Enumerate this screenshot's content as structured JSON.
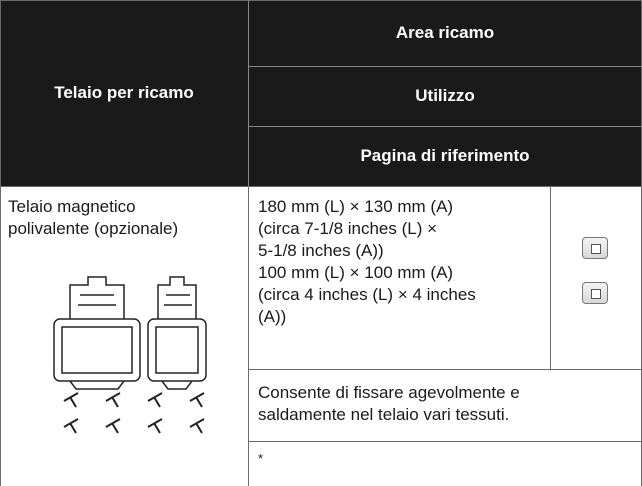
{
  "header": {
    "frame": "Telaio per ricamo",
    "area": "Area ricamo",
    "usage": "Utilizzo",
    "reference": "Pagina di riferimento"
  },
  "row": {
    "frame_lines": [
      "Telaio magnetico",
      "polivalente (opzionale)"
    ],
    "area_lines": [
      "180 mm (L) × 130 mm (A)",
      "(circa 7-1/8 inches (L) ×",
      "5-1/8 inches (A))",
      "100 mm (L) × 100 mm (A)",
      "(circa 4 inches (L) × 4 inches",
      "(A))"
    ],
    "usage_lines": [
      "Consente di fissare agevolmente e",
      "saldamente nel telaio vari tessuti."
    ],
    "reference": "*"
  }
}
